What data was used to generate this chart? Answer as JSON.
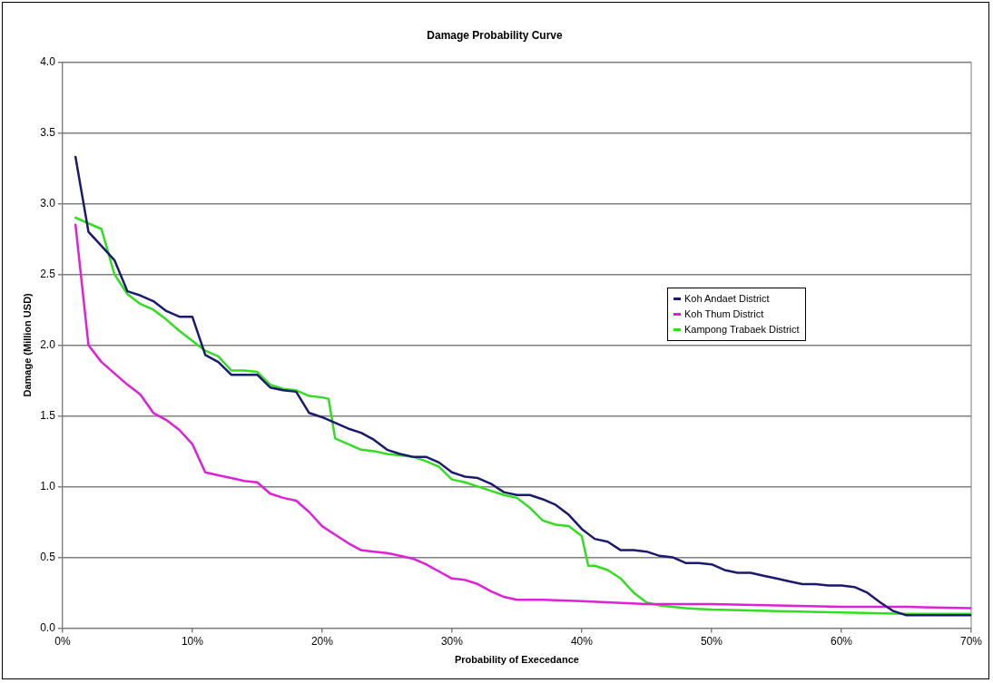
{
  "chart_data": {
    "type": "line",
    "title": "Damage Probability Curve",
    "xlabel": "Probability of Execedance",
    "ylabel": "Damage (Million USD)",
    "xlim": [
      0,
      70
    ],
    "ylim": [
      0,
      4
    ],
    "xticks": [
      {
        "value": 0,
        "label": "0%"
      },
      {
        "value": 10,
        "label": "10%"
      },
      {
        "value": 20,
        "label": "20%"
      },
      {
        "value": 30,
        "label": "30%"
      },
      {
        "value": 40,
        "label": "40%"
      },
      {
        "value": 50,
        "label": "50%"
      },
      {
        "value": 60,
        "label": "60%"
      },
      {
        "value": 70,
        "label": "70%"
      }
    ],
    "yticks": [
      {
        "value": 0,
        "label": "0.0"
      },
      {
        "value": 0.5,
        "label": "0.5"
      },
      {
        "value": 1,
        "label": "1.0"
      },
      {
        "value": 1.5,
        "label": "1.5"
      },
      {
        "value": 2,
        "label": "2.0"
      },
      {
        "value": 2.5,
        "label": "2.5"
      },
      {
        "value": 3,
        "label": "3.0"
      },
      {
        "value": 3.5,
        "label": "3.5"
      },
      {
        "value": 4,
        "label": "4.0"
      }
    ],
    "grid": "y",
    "legend": "right",
    "marker": "none",
    "line_style": "solid",
    "series": [
      {
        "name": "Koh Andaet District",
        "color": "#1a1a6e",
        "x": [
          1,
          2,
          3,
          4,
          5,
          6,
          7,
          8,
          9,
          10,
          11,
          12,
          13,
          14,
          15,
          16,
          17,
          18,
          19,
          20,
          21,
          22,
          23,
          24,
          25,
          26,
          27,
          28,
          29,
          30,
          31,
          32,
          33,
          34,
          35,
          36,
          37,
          38,
          39,
          40,
          41,
          42,
          43,
          44,
          45,
          46,
          47,
          48,
          49,
          50,
          51,
          52,
          53,
          54,
          55,
          56,
          57,
          58,
          59,
          60,
          61,
          62,
          63,
          64,
          65,
          66,
          67,
          70
        ],
        "values": [
          3.33,
          2.8,
          2.7,
          2.6,
          2.38,
          2.35,
          2.31,
          2.24,
          2.2,
          2.2,
          1.93,
          1.88,
          1.79,
          1.79,
          1.79,
          1.7,
          1.68,
          1.67,
          1.52,
          1.49,
          1.45,
          1.41,
          1.38,
          1.33,
          1.26,
          1.23,
          1.21,
          1.21,
          1.17,
          1.1,
          1.07,
          1.06,
          1.02,
          0.96,
          0.94,
          0.94,
          0.91,
          0.87,
          0.8,
          0.7,
          0.63,
          0.61,
          0.55,
          0.55,
          0.54,
          0.51,
          0.5,
          0.46,
          0.46,
          0.45,
          0.41,
          0.39,
          0.39,
          0.37,
          0.35,
          0.33,
          0.31,
          0.31,
          0.3,
          0.3,
          0.29,
          0.25,
          0.18,
          0.12,
          0.09,
          0.09,
          0.09,
          0.09
        ]
      },
      {
        "name": "Koh Thum District",
        "color": "#e020d8",
        "x": [
          1,
          2,
          3,
          4,
          5,
          6,
          7,
          8,
          9,
          10,
          11,
          12,
          13,
          14,
          15,
          16,
          17,
          18,
          19,
          20,
          21,
          22,
          23,
          24,
          25,
          26,
          27,
          28,
          29,
          30,
          31,
          32,
          33,
          34,
          35,
          37,
          40,
          45,
          50,
          55,
          60,
          65,
          70
        ],
        "values": [
          2.85,
          2.0,
          1.88,
          1.8,
          1.72,
          1.65,
          1.52,
          1.47,
          1.4,
          1.3,
          1.1,
          1.08,
          1.06,
          1.04,
          1.03,
          0.95,
          0.92,
          0.9,
          0.82,
          0.72,
          0.66,
          0.6,
          0.55,
          0.54,
          0.53,
          0.51,
          0.49,
          0.45,
          0.4,
          0.35,
          0.34,
          0.31,
          0.26,
          0.22,
          0.2,
          0.2,
          0.19,
          0.17,
          0.17,
          0.16,
          0.15,
          0.15,
          0.14
        ]
      },
      {
        "name": "Kampong Trabaek District",
        "color": "#33dd22",
        "x": [
          1,
          2,
          3,
          4,
          5,
          6,
          7,
          8,
          9,
          10,
          11,
          12,
          13,
          14,
          15,
          16,
          17,
          18,
          19,
          20,
          20.5,
          21,
          22,
          23,
          24,
          25,
          26,
          27,
          28,
          29,
          30,
          31,
          32,
          33,
          34,
          35,
          36,
          37,
          38,
          39,
          40,
          40.5,
          41,
          42,
          43,
          44,
          45,
          46,
          48,
          50,
          55,
          60,
          65,
          70
        ],
        "values": [
          2.9,
          2.86,
          2.82,
          2.5,
          2.36,
          2.29,
          2.25,
          2.18,
          2.1,
          2.03,
          1.96,
          1.92,
          1.82,
          1.82,
          1.81,
          1.72,
          1.69,
          1.68,
          1.64,
          1.63,
          1.62,
          1.34,
          1.3,
          1.26,
          1.25,
          1.23,
          1.22,
          1.21,
          1.18,
          1.14,
          1.05,
          1.03,
          1.0,
          0.97,
          0.94,
          0.92,
          0.85,
          0.76,
          0.73,
          0.72,
          0.65,
          0.44,
          0.44,
          0.41,
          0.35,
          0.25,
          0.18,
          0.16,
          0.14,
          0.13,
          0.12,
          0.11,
          0.1,
          0.1
        ]
      }
    ]
  }
}
